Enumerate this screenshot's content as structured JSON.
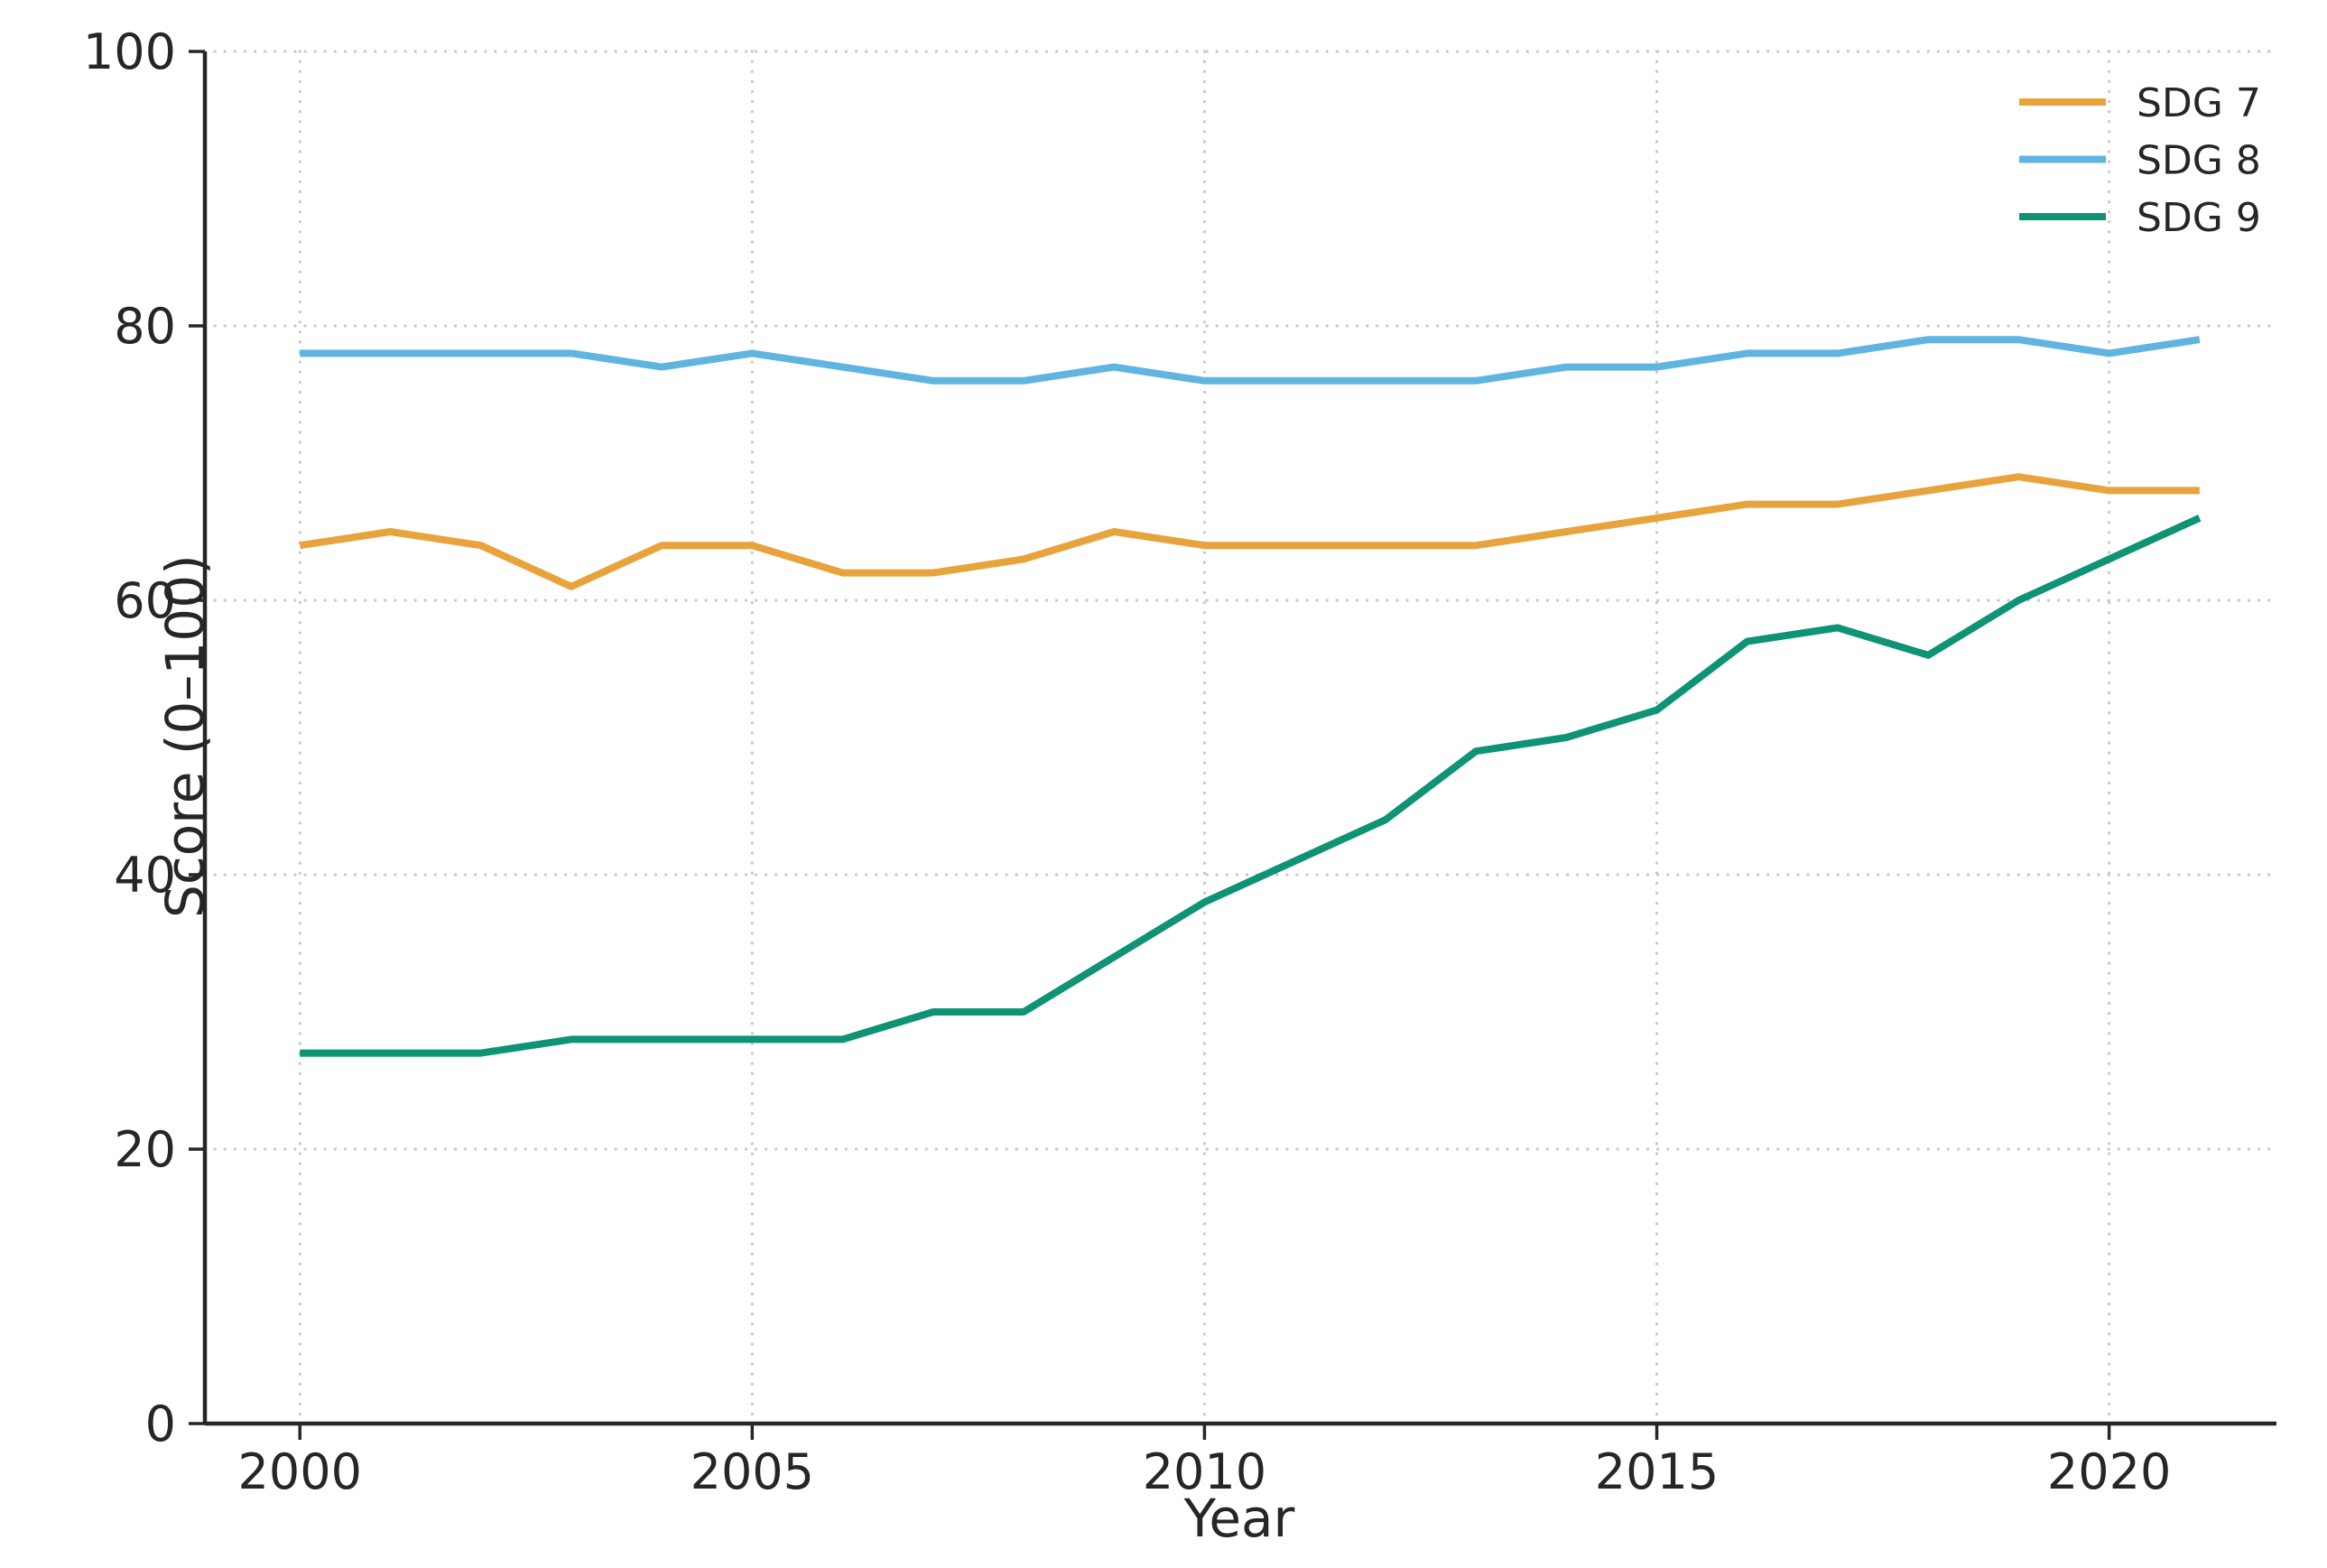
{
  "chart_data": {
    "type": "line",
    "title": "",
    "xlabel": "Year",
    "ylabel": "Score (0–100)",
    "x": [
      2000,
      2001,
      2002,
      2003,
      2004,
      2005,
      2006,
      2007,
      2008,
      2009,
      2010,
      2011,
      2012,
      2013,
      2014,
      2015,
      2016,
      2017,
      2018,
      2019,
      2020,
      2021
    ],
    "series": [
      {
        "name": "SDG 7",
        "color": "#E8A33C",
        "values": [
          64,
          65,
          64,
          61,
          64,
          64,
          62,
          62,
          63,
          65,
          64,
          64,
          64,
          64,
          65,
          66,
          67,
          67,
          68,
          69,
          68,
          68
        ]
      },
      {
        "name": "SDG 8",
        "color": "#5FB4E0",
        "values": [
          78,
          78,
          78,
          78,
          77,
          78,
          77,
          76,
          76,
          77,
          76,
          76,
          76,
          76,
          77,
          77,
          78,
          78,
          79,
          79,
          78,
          79
        ]
      },
      {
        "name": "SDG 9",
        "color": "#0E9374",
        "values": [
          27,
          27,
          27,
          28,
          28,
          28,
          28,
          30,
          30,
          34,
          38,
          41,
          44,
          49,
          50,
          52,
          57,
          58,
          56,
          60,
          63,
          66
        ]
      }
    ],
    "xlim": [
      1998.95,
      2021.85
    ],
    "ylim": [
      0,
      100
    ],
    "xticks": [
      2000,
      2005,
      2010,
      2015,
      2020
    ],
    "yticks": [
      0,
      20,
      40,
      60,
      80,
      100
    ],
    "grid": true,
    "grid_style": "dotted",
    "legend_position": "upper right",
    "legend": [
      "SDG 7",
      "SDG 8",
      "SDG 9"
    ],
    "axis_color": "#262626",
    "grid_color": "#c9c9c9",
    "tick_label_size": 54,
    "legend_label_size": 44
  }
}
